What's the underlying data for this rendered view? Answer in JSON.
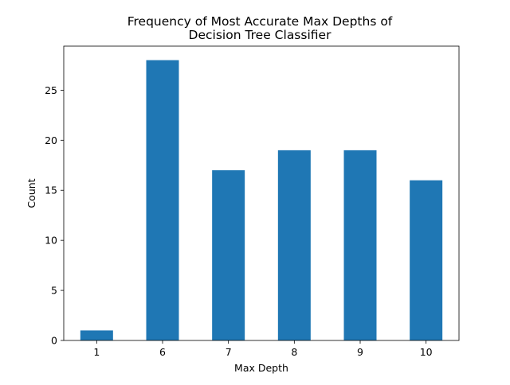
{
  "chart_data": {
    "type": "bar",
    "title_lines": [
      "Frequency of Most Accurate Max Depths of",
      "Decision Tree Classifier"
    ],
    "xlabel": "Max Depth",
    "ylabel": "Count",
    "categories": [
      "1",
      "6",
      "7",
      "8",
      "9",
      "10"
    ],
    "values": [
      1,
      28,
      17,
      19,
      19,
      16
    ],
    "ylim": [
      0,
      29.4
    ],
    "yticks": [
      0,
      5,
      10,
      15,
      20,
      25
    ],
    "grid": false,
    "legend": "none",
    "colors": {
      "bar": "#1f77b4",
      "axes": "#000000",
      "background": "#ffffff"
    }
  }
}
